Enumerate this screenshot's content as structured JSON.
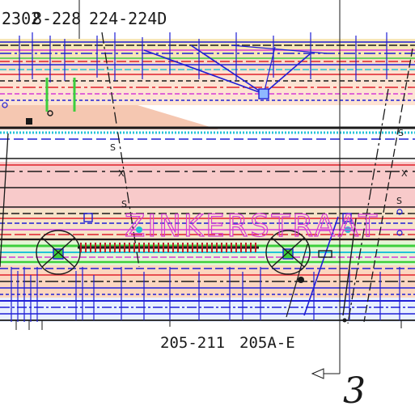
{
  "labels": {
    "top_left_1": "2302",
    "top_left_2": "8-228",
    "top_left_3": "224-224D",
    "street_name": "ZINKERSTRAAT",
    "bottom_addresses_1": "205-211",
    "bottom_addresses_2": "205A-E",
    "sheet_ref": "3",
    "marker_s": "S",
    "marker_x": "X"
  },
  "colors": {
    "road_pink": "#f8c8c8",
    "peach": "#fbdcc6",
    "blue_line": "#1f1fd6",
    "red_line": "#e0202a",
    "green_line": "#3ccf3c",
    "cyan_line": "#22c3d8",
    "magenta_line": "#d63ad6",
    "black_line": "#1a1a1a",
    "yellow_fill": "#f3e6a0"
  },
  "icons": {
    "tree_symbol": "tree-canopy-icon",
    "arrow": "leader-arrow-icon"
  }
}
